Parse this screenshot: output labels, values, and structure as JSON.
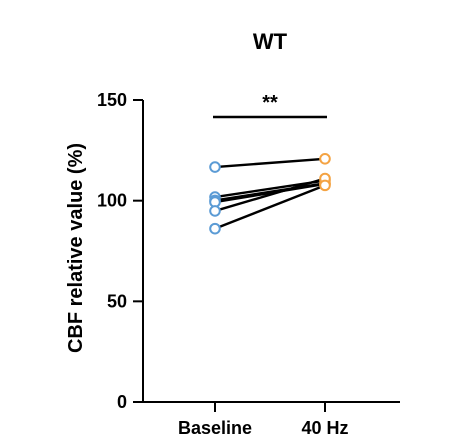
{
  "chart_data": {
    "type": "scatter",
    "title": "WT",
    "xlabel": "",
    "ylabel": "CBF relative value (%)",
    "categories": [
      "Baseline",
      "40 Hz"
    ],
    "ylim": [
      0,
      150
    ],
    "yticks": [
      "0",
      "50",
      "100",
      "150"
    ],
    "grid": false,
    "pairs": [
      [
        116.7,
        120.8
      ],
      [
        101.8,
        110.0
      ],
      [
        100.1,
        108.6
      ],
      [
        99.3,
        108.3
      ],
      [
        94.9,
        111.0
      ],
      [
        86.1,
        107.6
      ]
    ],
    "colors": {
      "baseline": "#5B9BD5",
      "hz40": "#F4A343",
      "line": "#000000"
    },
    "significance": {
      "label": "**",
      "from": "Baseline",
      "to": "40 Hz"
    }
  }
}
